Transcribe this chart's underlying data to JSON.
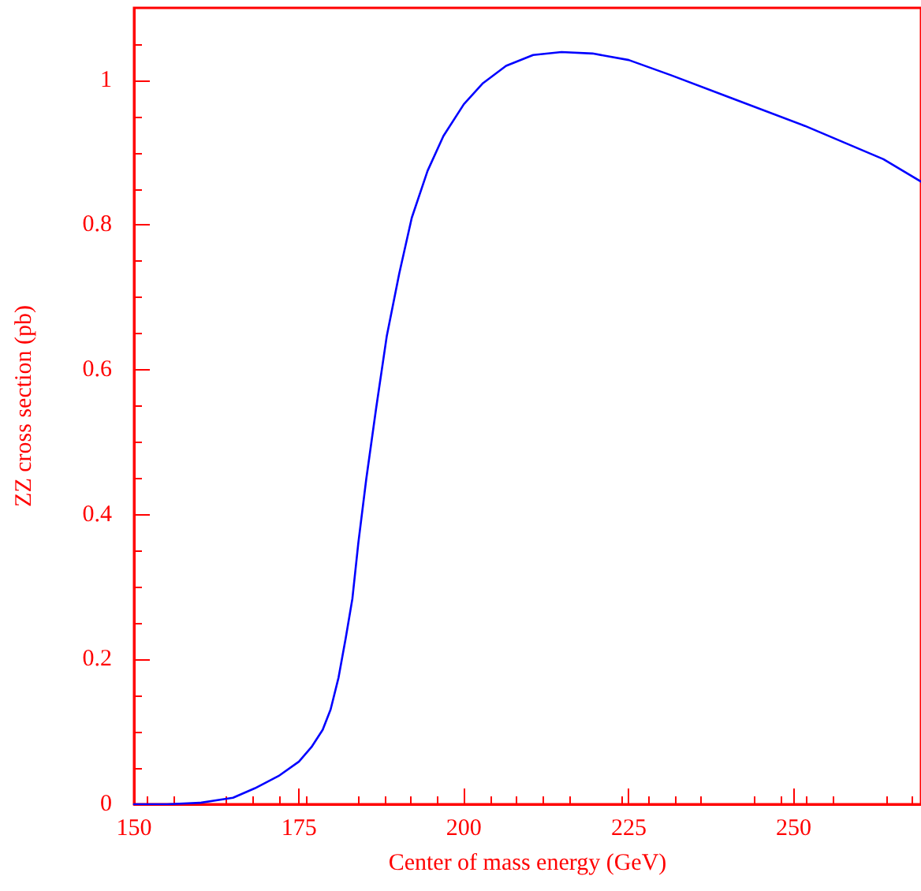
{
  "chart_data": {
    "type": "line",
    "xlabel": "Center of mass energy (GeV)",
    "ylabel": "ZZ cross section (pb)",
    "xlim": [
      150,
      269.3
    ],
    "xticks": [
      150,
      175,
      200,
      225,
      250
    ],
    "ylim": [
      0,
      1.1
    ],
    "yticks": [
      0,
      0.2,
      0.4,
      0.6,
      0.8,
      1
    ],
    "grid": false,
    "marker": "none",
    "line_style": "solid",
    "x": [
      150,
      155,
      160,
      165,
      168.3,
      171.9,
      175,
      176.9,
      178.6,
      179.8,
      181,
      182.1,
      183.1,
      184,
      185.2,
      186.7,
      188.3,
      190.2,
      192.1,
      194.5,
      196.9,
      200,
      202.9,
      206.4,
      210.5,
      214.8,
      219.5,
      225,
      231.4,
      239.8,
      251.7,
      263.6,
      269.3
    ],
    "series": [
      {
        "color": "#0000ff",
        "values": [
          0,
          0,
          0.002,
          0.009,
          0.022,
          0.039,
          0.059,
          0.079,
          0.103,
          0.131,
          0.175,
          0.23,
          0.284,
          0.361,
          0.449,
          0.547,
          0.646,
          0.733,
          0.81,
          0.875,
          0.923,
          0.967,
          0.996,
          1.02,
          1.035,
          1.039,
          1.037,
          1.028,
          1.007,
          0.978,
          0.937,
          0.891,
          0.86
        ]
      }
    ]
  }
}
